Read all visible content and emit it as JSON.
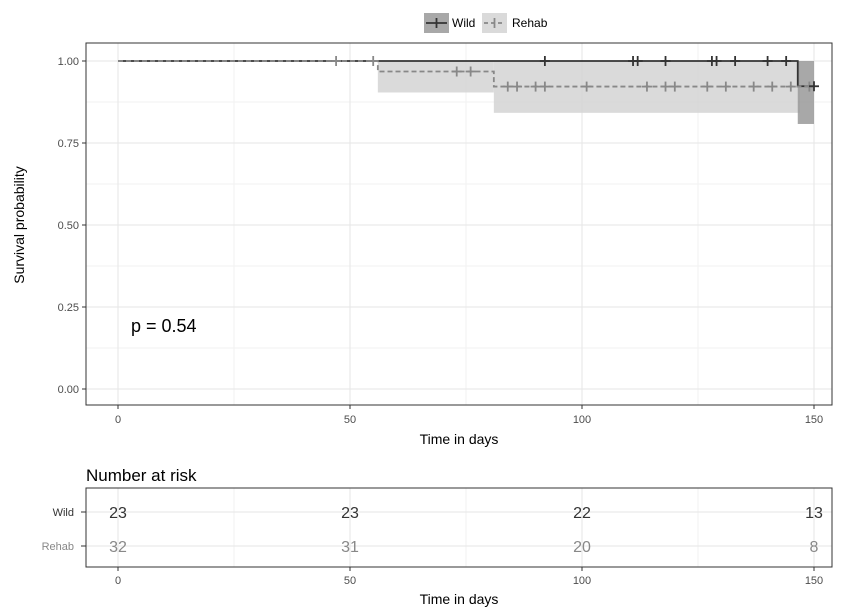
{
  "chart_data": [
    {
      "type": "line",
      "subtype": "kaplan-meier",
      "xlabel": "Time in days",
      "ylabel": "Survival probability",
      "xlim": [
        0,
        150
      ],
      "ylim": [
        0,
        1
      ],
      "x_ticks": [
        0,
        50,
        100,
        150
      ],
      "y_ticks": [
        0,
        0.25,
        0.5,
        0.75,
        1
      ],
      "y_tick_labels": [
        "0.00",
        "0.25",
        "0.50",
        "0.75",
        "1.00"
      ],
      "grid": true,
      "legend_position": "top",
      "annotation": "p = 0.54",
      "series": [
        {
          "name": "Wild",
          "color": "#333333",
          "ci_color": "#999999",
          "line_style": "solid",
          "steps": [
            [
              0,
              1.0
            ],
            [
              146.5,
              0.923
            ]
          ],
          "end_x": 150,
          "ci_bands": [
            [
              146.5,
              150,
              0.808,
              1.0
            ]
          ],
          "censor_times": [
            92,
            111,
            112,
            118,
            128,
            129,
            133,
            140,
            144,
            150
          ],
          "censor_values": [
            1,
            1,
            1,
            1,
            1,
            1,
            1,
            1,
            1,
            0.923
          ]
        },
        {
          "name": "Rehab",
          "color": "#888888",
          "ci_color": "#d3d3d3",
          "line_style": "dashed",
          "steps": [
            [
              0,
              1.0
            ],
            [
              56,
              0.968
            ],
            [
              81,
              0.922
            ]
          ],
          "end_x": 150,
          "ci_bands": [
            [
              56,
              81,
              0.904,
              1.0
            ],
            [
              81,
              147,
              0.842,
              1.0
            ]
          ],
          "censor_times": [
            47,
            55,
            73,
            76,
            84,
            86,
            90,
            92,
            101,
            114,
            118,
            120,
            127,
            131,
            137,
            141,
            145,
            149
          ],
          "censor_values": [
            1,
            1,
            0.968,
            0.968,
            0.922,
            0.922,
            0.922,
            0.922,
            0.922,
            0.922,
            0.922,
            0.922,
            0.922,
            0.922,
            0.922,
            0.922,
            0.922,
            0.922
          ]
        }
      ]
    },
    {
      "type": "table",
      "title": "Number at risk",
      "xlabel": "Time in days",
      "xlim": [
        0,
        150
      ],
      "x_ticks": [
        0,
        50,
        100,
        150
      ],
      "times": [
        0,
        50,
        100,
        150
      ],
      "rows": [
        {
          "name": "Wild",
          "color": "#333333",
          "values": [
            23,
            23,
            22,
            13
          ]
        },
        {
          "name": "Rehab",
          "color": "#888888",
          "values": [
            32,
            31,
            20,
            8
          ]
        }
      ]
    }
  ]
}
